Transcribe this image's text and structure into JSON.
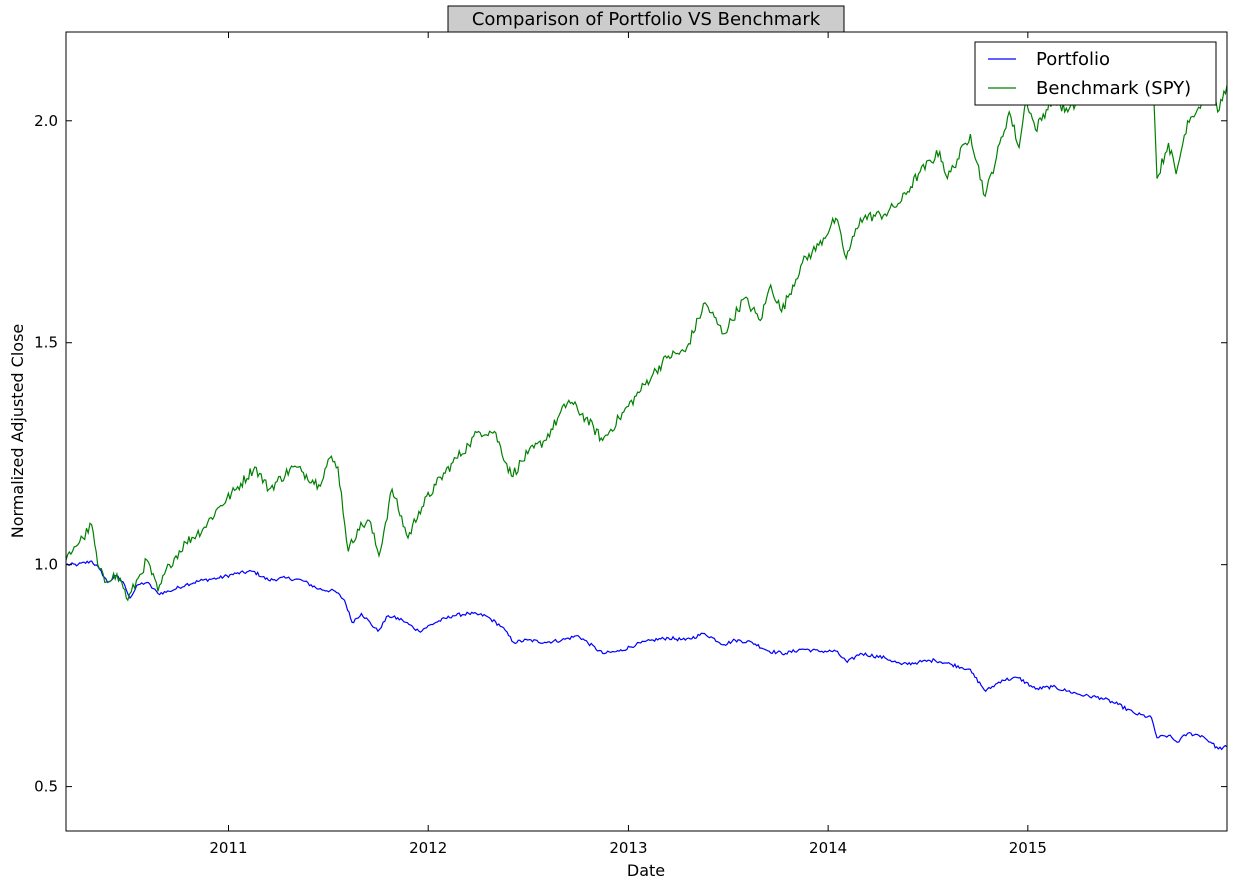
{
  "chart_data": {
    "type": "line",
    "title": "Comparison of Portfolio VS Benchmark",
    "xlabel": "Date",
    "ylabel": "Normalized Adjusted Close",
    "xlim": [
      "2010-03-10",
      "2015-12-31"
    ],
    "ylim": [
      0.4,
      2.2
    ],
    "x_ticks": [
      "2011",
      "2012",
      "2013",
      "2014",
      "2015"
    ],
    "y_ticks": [
      "0.5",
      "1.0",
      "1.5",
      "2.0"
    ],
    "y_tick_values": [
      0.5,
      1.0,
      1.5,
      2.0
    ],
    "legend": "top-right",
    "grid": false,
    "series": [
      {
        "name": "Portfolio",
        "color": "#0000ff",
        "points": [
          [
            "2010-03-10",
            1.0
          ],
          [
            "2010-04-01",
            1.0
          ],
          [
            "2010-04-26",
            1.008
          ],
          [
            "2010-05-10",
            0.99
          ],
          [
            "2010-05-25",
            0.96
          ],
          [
            "2010-06-10",
            0.975
          ],
          [
            "2010-06-25",
            0.955
          ],
          [
            "2010-07-05",
            0.925
          ],
          [
            "2010-07-20",
            0.955
          ],
          [
            "2010-08-05",
            0.96
          ],
          [
            "2010-08-25",
            0.935
          ],
          [
            "2010-09-15",
            0.94
          ],
          [
            "2010-10-15",
            0.955
          ],
          [
            "2010-11-15",
            0.965
          ],
          [
            "2010-12-15",
            0.97
          ],
          [
            "2011-01-15",
            0.98
          ],
          [
            "2011-02-15",
            0.985
          ],
          [
            "2011-03-15",
            0.965
          ],
          [
            "2011-04-15",
            0.97
          ],
          [
            "2011-05-15",
            0.965
          ],
          [
            "2011-06-15",
            0.945
          ],
          [
            "2011-07-15",
            0.94
          ],
          [
            "2011-08-01",
            0.92
          ],
          [
            "2011-08-15",
            0.87
          ],
          [
            "2011-09-01",
            0.89
          ],
          [
            "2011-10-01",
            0.85
          ],
          [
            "2011-10-20",
            0.885
          ],
          [
            "2011-11-15",
            0.875
          ],
          [
            "2011-12-15",
            0.85
          ],
          [
            "2012-01-15",
            0.87
          ],
          [
            "2012-02-15",
            0.885
          ],
          [
            "2012-03-15",
            0.89
          ],
          [
            "2012-04-15",
            0.885
          ],
          [
            "2012-05-15",
            0.86
          ],
          [
            "2012-06-05",
            0.825
          ],
          [
            "2012-07-01",
            0.83
          ],
          [
            "2012-08-01",
            0.825
          ],
          [
            "2012-09-01",
            0.83
          ],
          [
            "2012-10-01",
            0.84
          ],
          [
            "2012-11-15",
            0.8
          ],
          [
            "2012-12-15",
            0.805
          ],
          [
            "2013-01-15",
            0.82
          ],
          [
            "2013-02-15",
            0.83
          ],
          [
            "2013-03-15",
            0.835
          ],
          [
            "2013-04-15",
            0.83
          ],
          [
            "2013-05-20",
            0.845
          ],
          [
            "2013-06-25",
            0.82
          ],
          [
            "2013-07-15",
            0.83
          ],
          [
            "2013-08-15",
            0.825
          ],
          [
            "2013-09-15",
            0.805
          ],
          [
            "2013-10-15",
            0.8
          ],
          [
            "2013-11-15",
            0.81
          ],
          [
            "2013-12-15",
            0.805
          ],
          [
            "2014-01-15",
            0.805
          ],
          [
            "2014-02-05",
            0.78
          ],
          [
            "2014-03-01",
            0.8
          ],
          [
            "2014-04-15",
            0.79
          ],
          [
            "2014-05-15",
            0.775
          ],
          [
            "2014-06-15",
            0.78
          ],
          [
            "2014-07-15",
            0.785
          ],
          [
            "2014-08-15",
            0.775
          ],
          [
            "2014-09-15",
            0.765
          ],
          [
            "2014-10-16",
            0.715
          ],
          [
            "2014-11-15",
            0.74
          ],
          [
            "2014-12-15",
            0.745
          ],
          [
            "2015-01-15",
            0.72
          ],
          [
            "2015-02-15",
            0.725
          ],
          [
            "2015-03-15",
            0.715
          ],
          [
            "2015-04-15",
            0.705
          ],
          [
            "2015-05-15",
            0.7
          ],
          [
            "2015-06-15",
            0.685
          ],
          [
            "2015-07-15",
            0.665
          ],
          [
            "2015-08-15",
            0.655
          ],
          [
            "2015-08-25",
            0.61
          ],
          [
            "2015-09-15",
            0.615
          ],
          [
            "2015-10-01",
            0.6
          ],
          [
            "2015-10-20",
            0.62
          ],
          [
            "2015-11-15",
            0.615
          ],
          [
            "2015-12-01",
            0.6
          ],
          [
            "2015-12-15",
            0.585
          ],
          [
            "2015-12-31",
            0.59
          ]
        ]
      },
      {
        "name": "Benchmark (SPY)",
        "color": "#008000",
        "points": [
          [
            "2010-03-10",
            1.01
          ],
          [
            "2010-03-25",
            1.04
          ],
          [
            "2010-04-10",
            1.06
          ],
          [
            "2010-04-26",
            1.09
          ],
          [
            "2010-05-07",
            1.0
          ],
          [
            "2010-05-20",
            0.96
          ],
          [
            "2010-06-05",
            0.98
          ],
          [
            "2010-06-20",
            0.96
          ],
          [
            "2010-07-01",
            0.92
          ],
          [
            "2010-07-20",
            0.97
          ],
          [
            "2010-08-05",
            1.01
          ],
          [
            "2010-08-25",
            0.94
          ],
          [
            "2010-09-15",
            1.0
          ],
          [
            "2010-10-15",
            1.05
          ],
          [
            "2010-11-15",
            1.08
          ],
          [
            "2010-12-15",
            1.13
          ],
          [
            "2011-01-15",
            1.17
          ],
          [
            "2011-02-18",
            1.22
          ],
          [
            "2011-03-16",
            1.17
          ],
          [
            "2011-04-29",
            1.22
          ],
          [
            "2011-05-15",
            1.21
          ],
          [
            "2011-06-15",
            1.18
          ],
          [
            "2011-07-05",
            1.24
          ],
          [
            "2011-07-20",
            1.22
          ],
          [
            "2011-08-08",
            1.03
          ],
          [
            "2011-08-25",
            1.08
          ],
          [
            "2011-09-15",
            1.1
          ],
          [
            "2011-10-03",
            1.02
          ],
          [
            "2011-10-27",
            1.17
          ],
          [
            "2011-11-25",
            1.06
          ],
          [
            "2011-12-15",
            1.12
          ],
          [
            "2012-01-15",
            1.18
          ],
          [
            "2012-02-15",
            1.23
          ],
          [
            "2012-03-15",
            1.27
          ],
          [
            "2012-04-02",
            1.3
          ],
          [
            "2012-05-01",
            1.3
          ],
          [
            "2012-06-01",
            1.2
          ],
          [
            "2012-07-01",
            1.25
          ],
          [
            "2012-08-01",
            1.28
          ],
          [
            "2012-09-14",
            1.37
          ],
          [
            "2012-10-15",
            1.33
          ],
          [
            "2012-11-15",
            1.28
          ],
          [
            "2012-12-15",
            1.33
          ],
          [
            "2013-01-15",
            1.38
          ],
          [
            "2013-02-15",
            1.43
          ],
          [
            "2013-03-15",
            1.47
          ],
          [
            "2013-04-15",
            1.48
          ],
          [
            "2013-05-21",
            1.59
          ],
          [
            "2013-06-24",
            1.52
          ],
          [
            "2013-08-01",
            1.6
          ],
          [
            "2013-08-30",
            1.55
          ],
          [
            "2013-09-18",
            1.63
          ],
          [
            "2013-10-08",
            1.57
          ],
          [
            "2013-11-15",
            1.68
          ],
          [
            "2013-12-15",
            1.72
          ],
          [
            "2014-01-15",
            1.78
          ],
          [
            "2014-02-03",
            1.69
          ],
          [
            "2014-03-01",
            1.78
          ],
          [
            "2014-04-15",
            1.79
          ],
          [
            "2014-05-15",
            1.82
          ],
          [
            "2014-06-15",
            1.88
          ],
          [
            "2014-07-24",
            1.93
          ],
          [
            "2014-08-07",
            1.87
          ],
          [
            "2014-09-18",
            1.97
          ],
          [
            "2014-10-15",
            1.83
          ],
          [
            "2014-11-28",
            2.02
          ],
          [
            "2014-12-16",
            1.94
          ],
          [
            "2014-12-29",
            2.05
          ],
          [
            "2015-01-15",
            1.98
          ],
          [
            "2015-02-15",
            2.05
          ],
          [
            "2015-03-15",
            2.02
          ],
          [
            "2015-04-15",
            2.06
          ],
          [
            "2015-05-20",
            2.09
          ],
          [
            "2015-06-15",
            2.05
          ],
          [
            "2015-07-20",
            2.09
          ],
          [
            "2015-08-19",
            2.06
          ],
          [
            "2015-08-25",
            1.87
          ],
          [
            "2015-09-15",
            1.95
          ],
          [
            "2015-09-29",
            1.88
          ],
          [
            "2015-10-20",
            2.0
          ],
          [
            "2015-11-15",
            2.04
          ],
          [
            "2015-12-01",
            2.07
          ],
          [
            "2015-12-14",
            2.02
          ],
          [
            "2015-12-31",
            2.08
          ]
        ]
      }
    ]
  }
}
